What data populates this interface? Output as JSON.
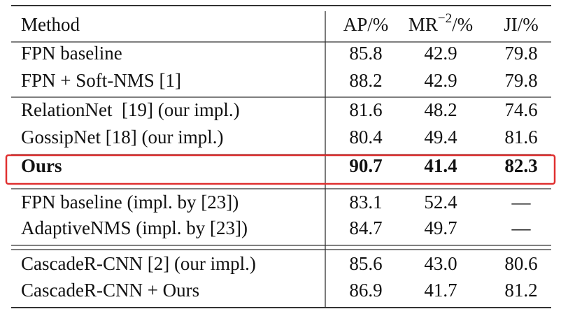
{
  "table": {
    "header": [
      "Method",
      "AP/%",
      {
        "base": "MR",
        "sup": "−2",
        "suffix": "/%"
      },
      "JI/%"
    ],
    "groups": [
      [
        [
          "FPN baseline",
          "85.8",
          "42.9",
          "79.8"
        ],
        [
          "FPN + Soft-NMS [1]",
          "88.2",
          "42.9",
          "79.8"
        ]
      ],
      [
        [
          "RelationNet  [19] (our impl.)",
          "81.6",
          "48.2",
          "74.6"
        ],
        [
          "GossipNet [18] (our impl.)",
          "80.4",
          "49.4",
          "81.6"
        ]
      ],
      [
        [
          "Ours",
          "90.7",
          "41.4",
          "82.3"
        ]
      ],
      [
        [
          "FPN baseline (impl. by [23])",
          "83.1",
          "52.4",
          "—"
        ],
        [
          "AdaptiveNMS (impl. by [23])",
          "84.7",
          "49.7",
          "—"
        ]
      ],
      [
        [
          "CascadeR-CNN [2] (our impl.)",
          "85.6",
          "43.0",
          "80.6"
        ],
        [
          "CascadeR-CNN + Ours",
          "86.9",
          "41.7",
          "81.2"
        ]
      ]
    ]
  }
}
